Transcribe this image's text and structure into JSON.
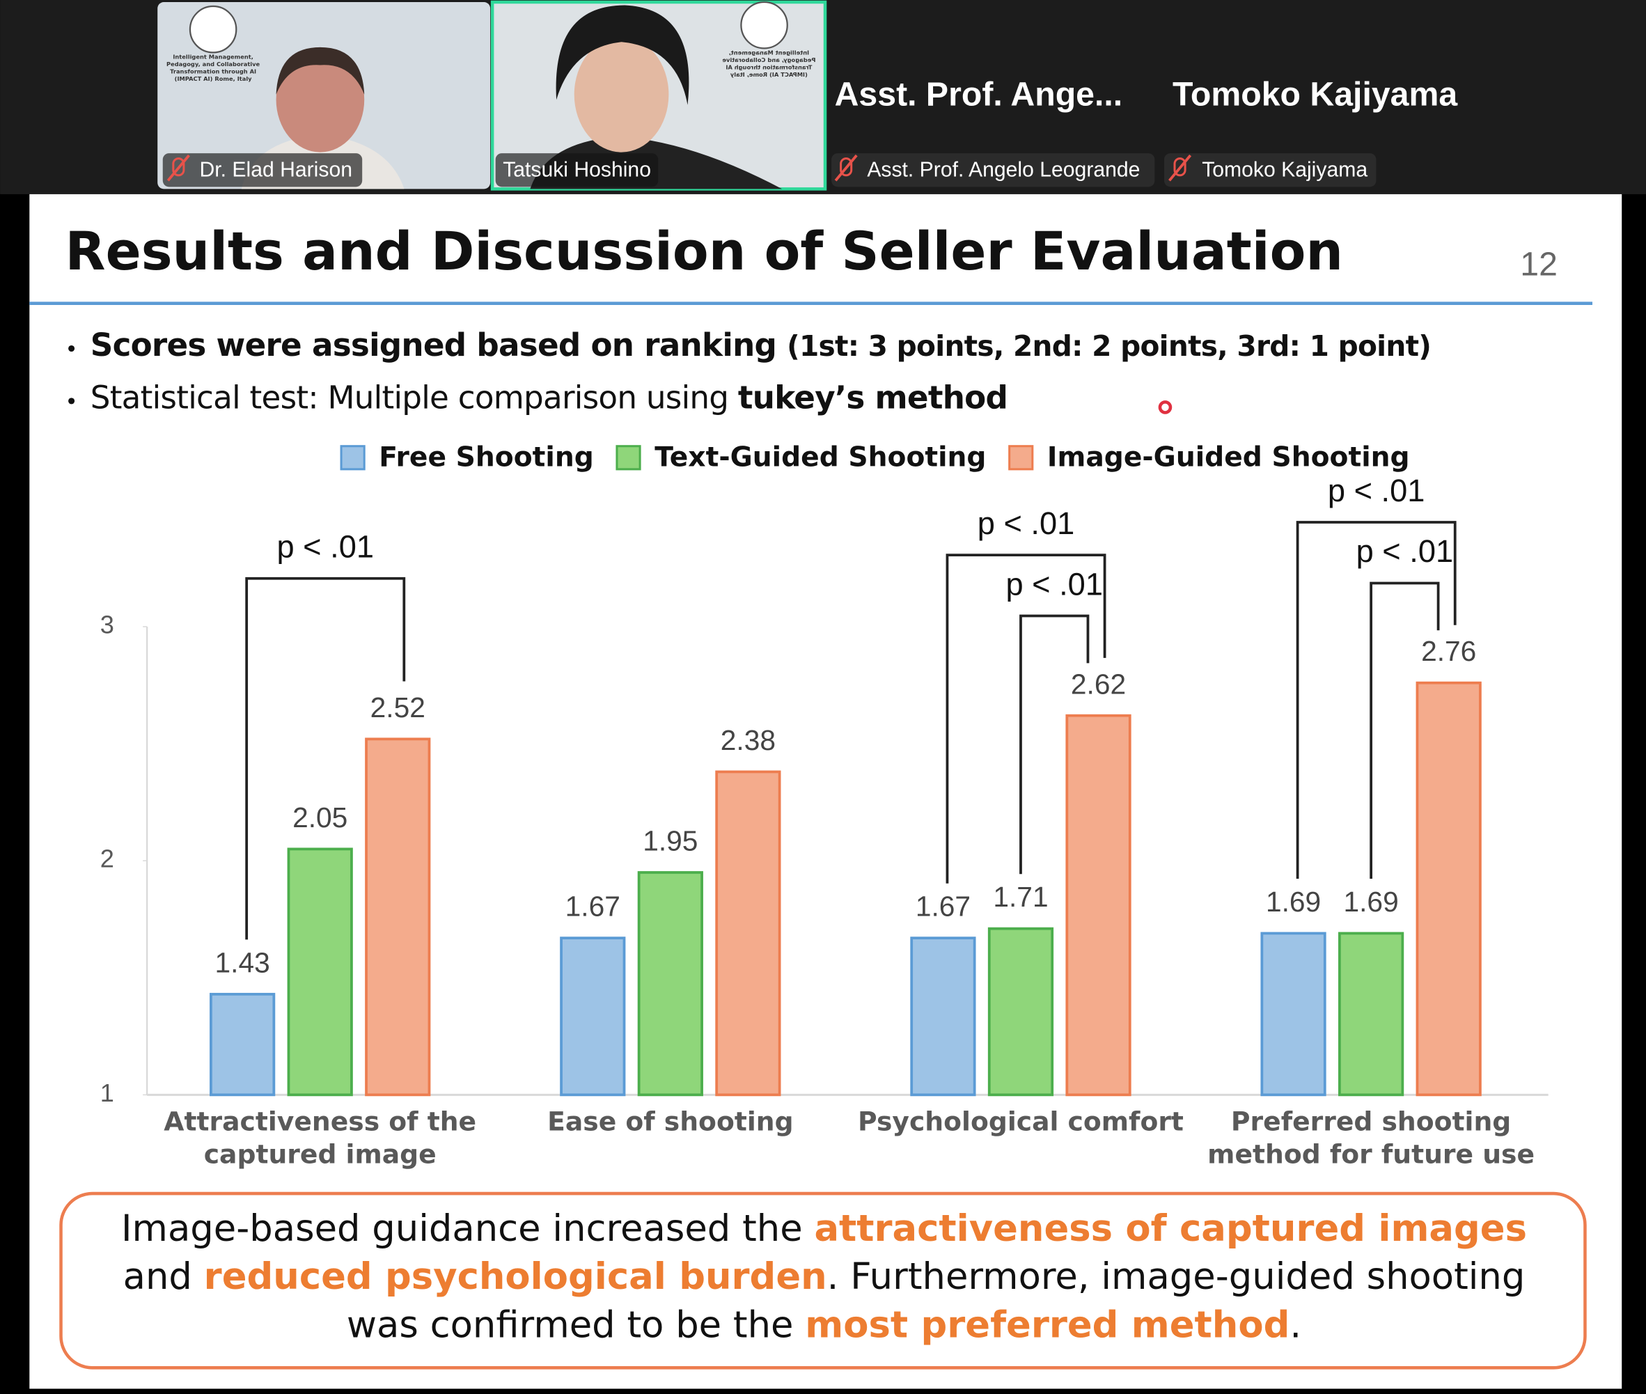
{
  "participants": [
    {
      "name": "Dr. Elad Harison"
    },
    {
      "name": "Tatsuki Hoshino"
    },
    {
      "name": "Asst. Prof. Angelo Leogrande",
      "display": "Asst. Prof. Ange..."
    },
    {
      "name": "Tomoko Kajiyama",
      "display": "Tomoko Kajiyama"
    }
  ],
  "tile_banner": "Intelligent Management, Pedagogy, and Collaborative Transformation through AI (IMPACT AI) Rome, Italy",
  "slide": {
    "title": "Results and Discussion of Seller Evaluation",
    "page_number": "12",
    "bullets": [
      [
        {
          "text": "Scores were assigned based on ranking ",
          "bold": true
        },
        {
          "text": "(1st: 3 points, 2nd: 2 points, 3rd: 1 point)",
          "bold": true,
          "small": true
        }
      ],
      [
        {
          "text": "Statistical test: Multiple comparison using "
        },
        {
          "text": "tukey’s method",
          "bold": true
        }
      ]
    ],
    "conclusion": [
      {
        "text": "Image-based guidance increased the "
      },
      {
        "text": "attractiveness of captured images",
        "highlight": true
      },
      {
        "text": " and "
      },
      {
        "text": "reduced psychological burden",
        "highlight": true
      },
      {
        "text": ". Furthermore, image-guided shooting was confirmed to be the "
      },
      {
        "text": "most preferred method",
        "highlight": true
      },
      {
        "text": "."
      }
    ]
  },
  "chart_data": {
    "type": "bar",
    "categories": [
      "Attractiveness of the captured image",
      "Ease of shooting",
      "Psychological comfort",
      "Preferred shooting method for future use"
    ],
    "series": [
      {
        "name": "Free Shooting",
        "color": "#9dc3e6",
        "edgecolor": "#5b9bd5",
        "values": [
          1.43,
          1.67,
          1.67,
          1.69
        ]
      },
      {
        "name": "Text-Guided Shooting",
        "color": "#8fd67a",
        "edgecolor": "#4cae4c",
        "values": [
          2.05,
          1.95,
          1.71,
          1.69
        ]
      },
      {
        "name": "Image-Guided Shooting",
        "color": "#f4ab8c",
        "edgecolor": "#ed7d4f",
        "values": [
          2.52,
          2.38,
          2.62,
          2.76
        ]
      }
    ],
    "ylim": [
      1,
      3
    ],
    "yticks": [
      1,
      2,
      3
    ],
    "grid": false,
    "comparisons": [
      {
        "category": 0,
        "series": [
          0,
          2
        ],
        "label": "p < .01"
      },
      {
        "category": 2,
        "series": [
          1,
          2
        ],
        "label": "p < .01"
      },
      {
        "category": 2,
        "series": [
          0,
          2
        ],
        "label": "p < .01"
      },
      {
        "category": 3,
        "series": [
          1,
          2
        ],
        "label": "p < .01"
      },
      {
        "category": 3,
        "series": [
          0,
          2
        ],
        "label": "p < .01"
      }
    ]
  }
}
